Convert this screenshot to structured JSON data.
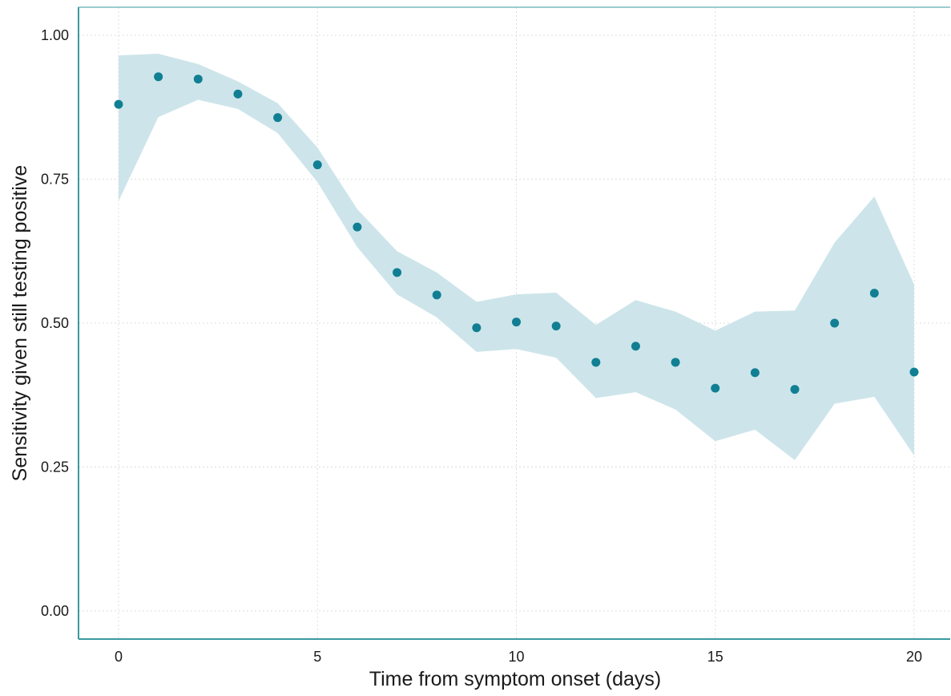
{
  "chart_data": {
    "type": "scatter",
    "title": "",
    "xlabel": "Time from symptom onset (days)",
    "ylabel": "Sensitivity given still testing positive",
    "xlim": [
      -1,
      20.5
    ],
    "ylim": [
      -0.05,
      1.05
    ],
    "x_ticks": [
      0,
      5,
      10,
      15,
      20
    ],
    "x_tick_labels": [
      "0",
      "5",
      "10",
      "15",
      "20"
    ],
    "y_ticks": [
      0,
      0.25,
      0.5,
      0.75,
      1.0
    ],
    "y_tick_labels": [
      "0.00",
      "0.25",
      "0.50",
      "0.75",
      "1.00"
    ],
    "grid": true,
    "legend": "none",
    "colors": {
      "point": "#117f93",
      "ribbon": "#cde5ea",
      "axis": "#3a9aa0",
      "grid": "#dddddd"
    },
    "series": [
      {
        "x": [
          0,
          1,
          2,
          3,
          4,
          5,
          6,
          7,
          8,
          9,
          10,
          11,
          12,
          13,
          14,
          15,
          16,
          17,
          18,
          19,
          20
        ],
        "y": [
          0.88,
          0.928,
          0.924,
          0.898,
          0.857,
          0.775,
          0.667,
          0.588,
          0.549,
          0.492,
          0.502,
          0.495,
          0.432,
          0.46,
          0.432,
          0.387,
          0.414,
          0.385,
          0.5,
          0.552,
          0.415
        ],
        "lower": [
          0.712,
          0.858,
          0.888,
          0.872,
          0.83,
          0.745,
          0.632,
          0.55,
          0.51,
          0.45,
          0.455,
          0.44,
          0.37,
          0.38,
          0.35,
          0.295,
          0.315,
          0.262,
          0.36,
          0.372,
          0.27
        ],
        "upper": [
          0.965,
          0.968,
          0.95,
          0.92,
          0.882,
          0.805,
          0.698,
          0.625,
          0.588,
          0.537,
          0.55,
          0.553,
          0.497,
          0.54,
          0.52,
          0.487,
          0.52,
          0.522,
          0.64,
          0.72,
          0.567
        ]
      }
    ]
  }
}
